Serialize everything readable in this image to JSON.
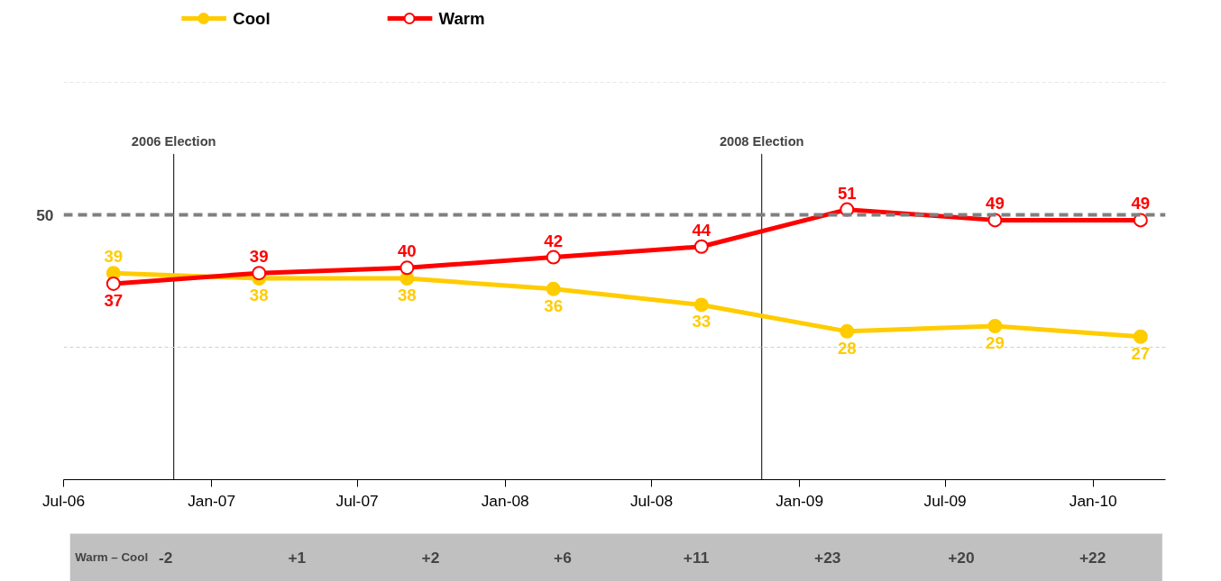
{
  "chart_data": {
    "type": "line",
    "x": [
      "2006-09",
      "2007-03",
      "2007-09",
      "2008-03",
      "2008-09",
      "2009-03",
      "2009-09",
      "2010-03"
    ],
    "series": [
      {
        "name": "Cool",
        "color": "#ffcc00",
        "values": [
          39,
          38,
          38,
          36,
          33,
          28,
          29,
          27
        ]
      },
      {
        "name": "Warm",
        "color": "#ff0000",
        "values": [
          37,
          39,
          40,
          42,
          44,
          51,
          49,
          49
        ]
      }
    ],
    "xlim": [
      "2006-07",
      "2010-04"
    ],
    "xticks": [
      {
        "value": "2006-07",
        "label": "Jul-06"
      },
      {
        "value": "2007-01",
        "label": "Jan-07"
      },
      {
        "value": "2007-07",
        "label": "Jul-07"
      },
      {
        "value": "2008-01",
        "label": "Jan-08"
      },
      {
        "value": "2008-07",
        "label": "Jul-08"
      },
      {
        "value": "2009-01",
        "label": "Jan-09"
      },
      {
        "value": "2009-07",
        "label": "Jul-09"
      },
      {
        "value": "2010-01",
        "label": "Jan-10"
      }
    ],
    "ylim": [
      0,
      75
    ],
    "legend": "top left",
    "marker": "circle",
    "line_style": "solid",
    "data_labels": true,
    "ref_lines": [
      {
        "axis": "y",
        "value": 50,
        "label": "50",
        "color": "#808080",
        "line_style": "dashed"
      },
      {
        "axis": "y",
        "value": 25,
        "label": null,
        "color": "#d0d0d0",
        "line_style": "dashed"
      },
      {
        "axis": "y",
        "value": 75,
        "label": null,
        "color": "#d0d0d0",
        "line_style": "dashed"
      },
      {
        "axis": "x",
        "value": "2006-11-15",
        "label": "2006 Election",
        "color": "#000000",
        "line_style": "solid"
      },
      {
        "axis": "x",
        "value": "2008-11-15",
        "label": "2008 Election",
        "color": "#000000",
        "line_style": "solid"
      }
    ],
    "annotations": [
      "Warm – Cool",
      "-2",
      "+1",
      "+2",
      "+6",
      "+11",
      "+23",
      "+20",
      "+22"
    ]
  }
}
